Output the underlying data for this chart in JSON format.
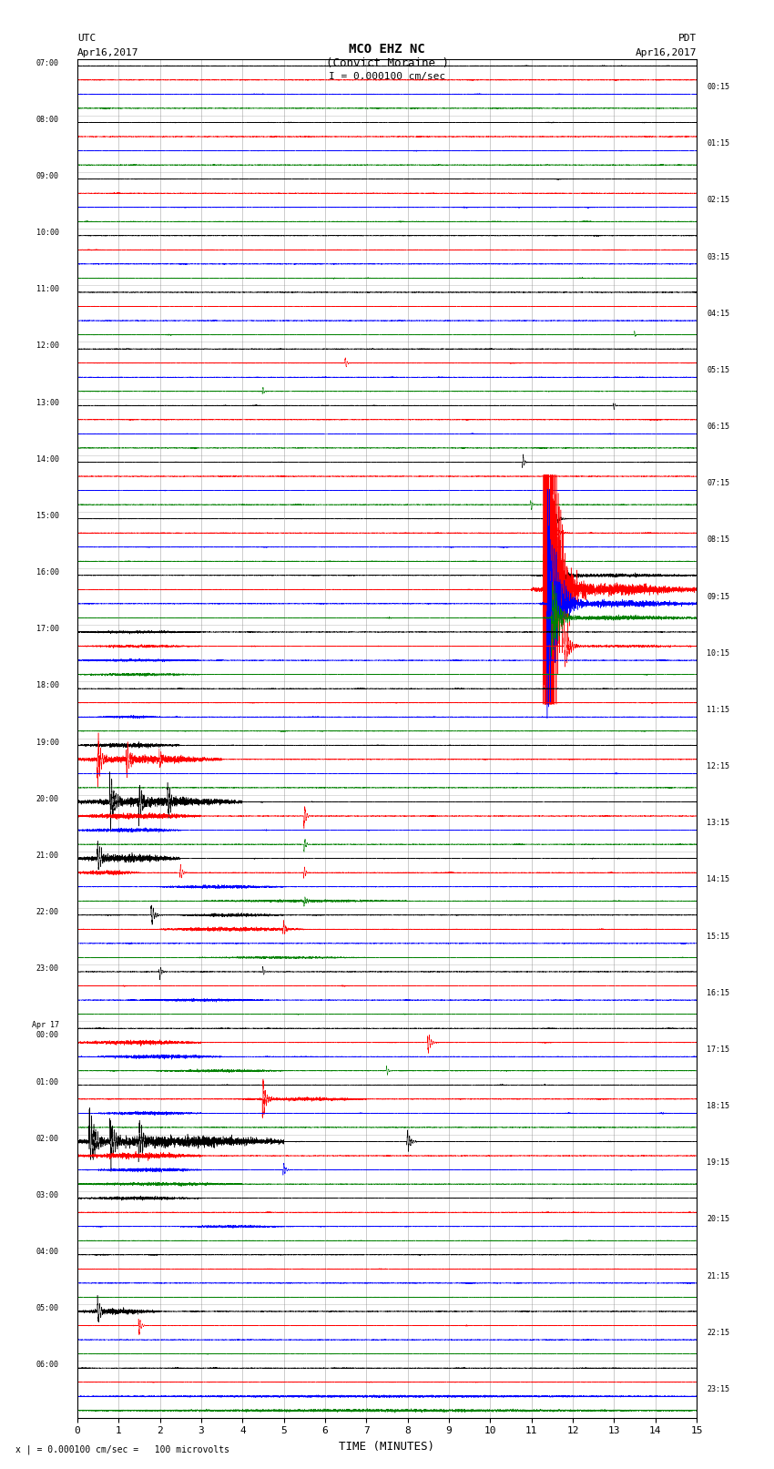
{
  "title_line1": "MCO EHZ NC",
  "title_line2": "(Convict Moraine )",
  "scale_text": "I = 0.000100 cm/sec",
  "bottom_note": "x | = 0.000100 cm/sec =   100 microvolts",
  "utc_label": "UTC",
  "utc_date": "Apr16,2017",
  "pdt_label": "PDT",
  "pdt_date": "Apr16,2017",
  "xlabel": "TIME (MINUTES)",
  "xlim": [
    0,
    15
  ],
  "xticks": [
    0,
    1,
    2,
    3,
    4,
    5,
    6,
    7,
    8,
    9,
    10,
    11,
    12,
    13,
    14,
    15
  ],
  "background_color": "#ffffff",
  "trace_colors": [
    "black",
    "red",
    "blue",
    "green"
  ],
  "grid_color": "#888888",
  "left_times": [
    "07:00",
    "08:00",
    "09:00",
    "10:00",
    "11:00",
    "12:00",
    "13:00",
    "14:00",
    "15:00",
    "16:00",
    "17:00",
    "18:00",
    "19:00",
    "20:00",
    "21:00",
    "22:00",
    "23:00",
    "Apr 17\n00:00",
    "01:00",
    "02:00",
    "03:00",
    "04:00",
    "05:00",
    "06:00"
  ],
  "right_times": [
    "00:15",
    "01:15",
    "02:15",
    "03:15",
    "04:15",
    "05:15",
    "06:15",
    "07:15",
    "08:15",
    "09:15",
    "10:15",
    "11:15",
    "12:15",
    "13:15",
    "14:15",
    "15:15",
    "16:15",
    "17:15",
    "18:15",
    "19:15",
    "20:15",
    "21:15",
    "22:15",
    "23:15"
  ],
  "n_rows": 24,
  "n_traces_per_row": 4,
  "figsize": [
    8.5,
    16.13
  ],
  "dpi": 100
}
